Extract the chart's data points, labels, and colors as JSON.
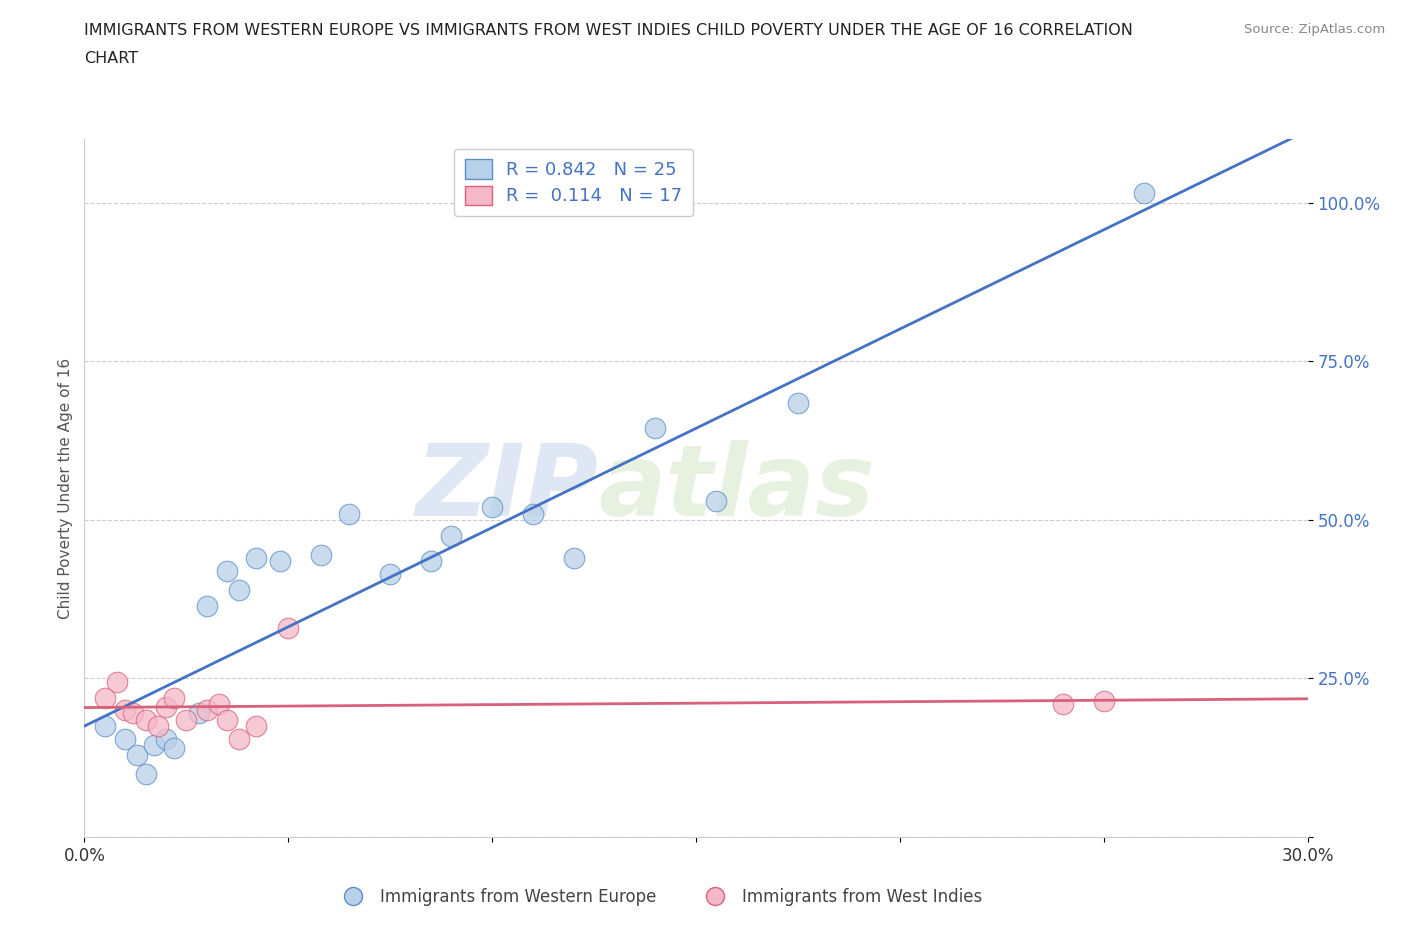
{
  "title_line1": "IMMIGRANTS FROM WESTERN EUROPE VS IMMIGRANTS FROM WEST INDIES CHILD POVERTY UNDER THE AGE OF 16 CORRELATION",
  "title_line2": "CHART",
  "source": "Source: ZipAtlas.com",
  "ylabel": "Child Poverty Under the Age of 16",
  "xlim": [
    0.0,
    0.3
  ],
  "ylim": [
    0.0,
    1.1
  ],
  "x_ticks": [
    0.0,
    0.05,
    0.1,
    0.15,
    0.2,
    0.25,
    0.3
  ],
  "x_tick_labels": [
    "0.0%",
    "",
    "",
    "",
    "",
    "",
    "30.0%"
  ],
  "y_ticks": [
    0.0,
    0.25,
    0.5,
    0.75,
    1.0
  ],
  "y_tick_labels": [
    "",
    "25.0%",
    "50.0%",
    "75.0%",
    "100.0%"
  ],
  "blue_r": 0.842,
  "blue_n": 25,
  "pink_r": 0.114,
  "pink_n": 17,
  "blue_color": "#b8d0e8",
  "blue_edge_color": "#5b8fc9",
  "blue_line_color": "#4472c4",
  "pink_color": "#f5b8c8",
  "pink_edge_color": "#d9607a",
  "pink_line_color": "#d9607a",
  "legend_label_blue": "Immigrants from Western Europe",
  "legend_label_pink": "Immigrants from West Indies",
  "watermark_zip": "ZIP",
  "watermark_atlas": "atlas",
  "blue_scatter_x": [
    0.005,
    0.01,
    0.013,
    0.015,
    0.017,
    0.02,
    0.022,
    0.028,
    0.03,
    0.035,
    0.038,
    0.042,
    0.048,
    0.058,
    0.065,
    0.075,
    0.085,
    0.09,
    0.1,
    0.11,
    0.12,
    0.14,
    0.155,
    0.175,
    0.26
  ],
  "blue_scatter_y": [
    0.175,
    0.155,
    0.13,
    0.1,
    0.145,
    0.155,
    0.14,
    0.195,
    0.365,
    0.42,
    0.39,
    0.44,
    0.435,
    0.445,
    0.51,
    0.415,
    0.435,
    0.475,
    0.52,
    0.51,
    0.44,
    0.645,
    0.53,
    0.685,
    1.015
  ],
  "pink_scatter_x": [
    0.005,
    0.008,
    0.01,
    0.012,
    0.015,
    0.018,
    0.02,
    0.022,
    0.025,
    0.03,
    0.033,
    0.035,
    0.038,
    0.042,
    0.05,
    0.24,
    0.25
  ],
  "pink_scatter_y": [
    0.22,
    0.245,
    0.2,
    0.195,
    0.185,
    0.175,
    0.205,
    0.22,
    0.185,
    0.2,
    0.21,
    0.185,
    0.155,
    0.175,
    0.33,
    0.21,
    0.215
  ],
  "background_color": "#ffffff",
  "grid_color": "#cccccc"
}
